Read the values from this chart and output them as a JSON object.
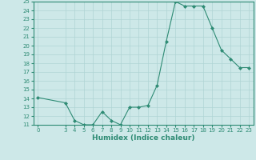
{
  "x": [
    0,
    3,
    4,
    5,
    6,
    7,
    8,
    9,
    10,
    11,
    12,
    13,
    14,
    15,
    16,
    17,
    18,
    19,
    20,
    21,
    22,
    23
  ],
  "y": [
    14.1,
    13.5,
    11.5,
    11.0,
    11.0,
    12.5,
    11.5,
    11.0,
    13.0,
    13.0,
    13.2,
    15.5,
    20.5,
    25.0,
    24.5,
    24.5,
    24.5,
    22.0,
    19.5,
    18.5,
    17.5,
    17.5
  ],
  "xlabel": "Humidex (Indice chaleur)",
  "ylim": [
    11,
    25
  ],
  "xlim": [
    -0.5,
    23.5
  ],
  "yticks": [
    11,
    12,
    13,
    14,
    15,
    16,
    17,
    18,
    19,
    20,
    21,
    22,
    23,
    24,
    25
  ],
  "xticks": [
    0,
    3,
    4,
    5,
    6,
    7,
    8,
    9,
    10,
    11,
    12,
    13,
    14,
    15,
    16,
    17,
    18,
    19,
    20,
    21,
    22,
    23
  ],
  "line_color": "#2e8b74",
  "marker_color": "#2e8b74",
  "bg_color": "#cde8e8",
  "grid_color": "#afd4d4",
  "axis_color": "#2e8b74",
  "xlabel_fontsize": 6.5,
  "tick_fontsize": 5.0,
  "xlabel_fontweight": "bold"
}
